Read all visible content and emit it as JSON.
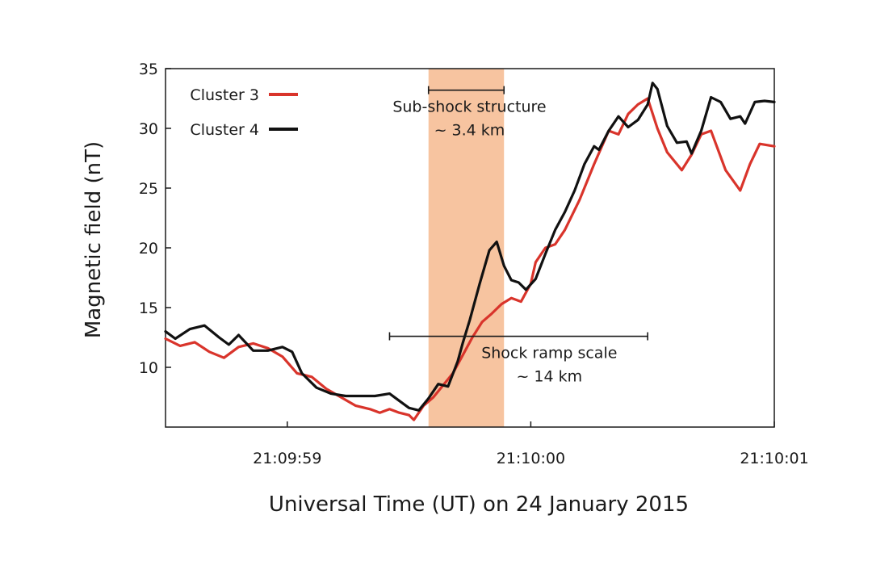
{
  "chart_data": {
    "type": "line",
    "xlabel": "Universal Time (UT) on 24 January 2015",
    "ylabel": "Magnetic field (nT)",
    "xlim": [
      -1.5,
      1.0
    ],
    "ylim": [
      5,
      35
    ],
    "x_ticks": [
      {
        "x": -1.0,
        "label": "21:09:59"
      },
      {
        "x": 0.0,
        "label": "21:10:00"
      },
      {
        "x": 1.0,
        "label": "21:10:01"
      }
    ],
    "y_ticks": [
      10,
      15,
      20,
      25,
      30,
      35
    ],
    "x_unit_note": "seconds relative to 21:10:00",
    "series": [
      {
        "name": "Cluster 3",
        "color": "#d9342b",
        "points": [
          [
            -1.5,
            12.4
          ],
          [
            -1.44,
            11.8
          ],
          [
            -1.38,
            12.1
          ],
          [
            -1.32,
            11.3
          ],
          [
            -1.26,
            10.8
          ],
          [
            -1.2,
            11.7
          ],
          [
            -1.14,
            12.0
          ],
          [
            -1.08,
            11.6
          ],
          [
            -1.02,
            10.9
          ],
          [
            -0.96,
            9.5
          ],
          [
            -0.9,
            9.2
          ],
          [
            -0.84,
            8.2
          ],
          [
            -0.78,
            7.5
          ],
          [
            -0.72,
            6.8
          ],
          [
            -0.66,
            6.5
          ],
          [
            -0.62,
            6.2
          ],
          [
            -0.58,
            6.5
          ],
          [
            -0.54,
            6.2
          ],
          [
            -0.5,
            6.0
          ],
          [
            -0.48,
            5.6
          ],
          [
            -0.44,
            6.8
          ],
          [
            -0.4,
            7.5
          ],
          [
            -0.36,
            8.5
          ],
          [
            -0.32,
            9.5
          ],
          [
            -0.28,
            11.0
          ],
          [
            -0.24,
            12.5
          ],
          [
            -0.2,
            13.8
          ],
          [
            -0.16,
            14.5
          ],
          [
            -0.12,
            15.3
          ],
          [
            -0.08,
            15.8
          ],
          [
            -0.04,
            15.5
          ],
          [
            0.0,
            17.0
          ],
          [
            0.02,
            18.8
          ],
          [
            0.06,
            20.0
          ],
          [
            0.1,
            20.3
          ],
          [
            0.14,
            21.5
          ],
          [
            0.2,
            24.0
          ],
          [
            0.26,
            27.0
          ],
          [
            0.32,
            29.8
          ],
          [
            0.36,
            29.5
          ],
          [
            0.4,
            31.2
          ],
          [
            0.44,
            32.0
          ],
          [
            0.48,
            32.5
          ],
          [
            0.52,
            30.0
          ],
          [
            0.56,
            28.0
          ],
          [
            0.62,
            26.5
          ],
          [
            0.66,
            27.8
          ],
          [
            0.7,
            29.5
          ],
          [
            0.74,
            29.8
          ],
          [
            0.8,
            26.5
          ],
          [
            0.86,
            24.8
          ],
          [
            0.9,
            27.0
          ],
          [
            0.94,
            28.7
          ],
          [
            1.0,
            28.5
          ]
        ]
      },
      {
        "name": "Cluster 4",
        "color": "#111111",
        "points": [
          [
            -1.5,
            13.0
          ],
          [
            -1.46,
            12.4
          ],
          [
            -1.4,
            13.2
          ],
          [
            -1.34,
            13.5
          ],
          [
            -1.28,
            12.5
          ],
          [
            -1.24,
            11.9
          ],
          [
            -1.2,
            12.7
          ],
          [
            -1.14,
            11.4
          ],
          [
            -1.08,
            11.4
          ],
          [
            -1.02,
            11.7
          ],
          [
            -0.98,
            11.3
          ],
          [
            -0.94,
            9.5
          ],
          [
            -0.88,
            8.3
          ],
          [
            -0.82,
            7.8
          ],
          [
            -0.76,
            7.6
          ],
          [
            -0.7,
            7.6
          ],
          [
            -0.64,
            7.6
          ],
          [
            -0.58,
            7.8
          ],
          [
            -0.54,
            7.2
          ],
          [
            -0.5,
            6.6
          ],
          [
            -0.46,
            6.4
          ],
          [
            -0.42,
            7.4
          ],
          [
            -0.38,
            8.6
          ],
          [
            -0.34,
            8.4
          ],
          [
            -0.3,
            10.5
          ],
          [
            -0.28,
            12.0
          ],
          [
            -0.25,
            14.0
          ],
          [
            -0.21,
            17.0
          ],
          [
            -0.17,
            19.8
          ],
          [
            -0.14,
            20.5
          ],
          [
            -0.11,
            18.5
          ],
          [
            -0.08,
            17.3
          ],
          [
            -0.05,
            17.1
          ],
          [
            -0.02,
            16.5
          ],
          [
            0.02,
            17.4
          ],
          [
            0.06,
            19.5
          ],
          [
            0.1,
            21.5
          ],
          [
            0.14,
            23.0
          ],
          [
            0.18,
            24.8
          ],
          [
            0.22,
            27.0
          ],
          [
            0.26,
            28.5
          ],
          [
            0.28,
            28.2
          ],
          [
            0.32,
            29.8
          ],
          [
            0.36,
            31.0
          ],
          [
            0.4,
            30.1
          ],
          [
            0.44,
            30.7
          ],
          [
            0.48,
            32.0
          ],
          [
            0.5,
            33.8
          ],
          [
            0.52,
            33.3
          ],
          [
            0.56,
            30.2
          ],
          [
            0.6,
            28.8
          ],
          [
            0.64,
            28.9
          ],
          [
            0.66,
            27.9
          ],
          [
            0.7,
            29.8
          ],
          [
            0.74,
            32.6
          ],
          [
            0.78,
            32.2
          ],
          [
            0.82,
            30.8
          ],
          [
            0.86,
            31.0
          ],
          [
            0.88,
            30.4
          ],
          [
            0.92,
            32.2
          ],
          [
            0.96,
            32.3
          ],
          [
            1.0,
            32.2
          ]
        ]
      }
    ],
    "highlight": {
      "x_range": [
        -0.42,
        -0.11
      ],
      "color": "#f7c4a0"
    },
    "annotations": [
      {
        "name": "sub-shock",
        "text_lines": [
          "Sub-shock structure",
          "~ 3.4 km"
        ],
        "x_range": [
          -0.42,
          -0.11
        ],
        "y": 33.2
      },
      {
        "name": "shock-ramp",
        "text_lines": [
          "Shock ramp scale",
          "~ 14 km"
        ],
        "x_range": [
          -0.58,
          0.48
        ],
        "y": 12.6
      }
    ],
    "legend": {
      "placement": "top-left"
    }
  }
}
